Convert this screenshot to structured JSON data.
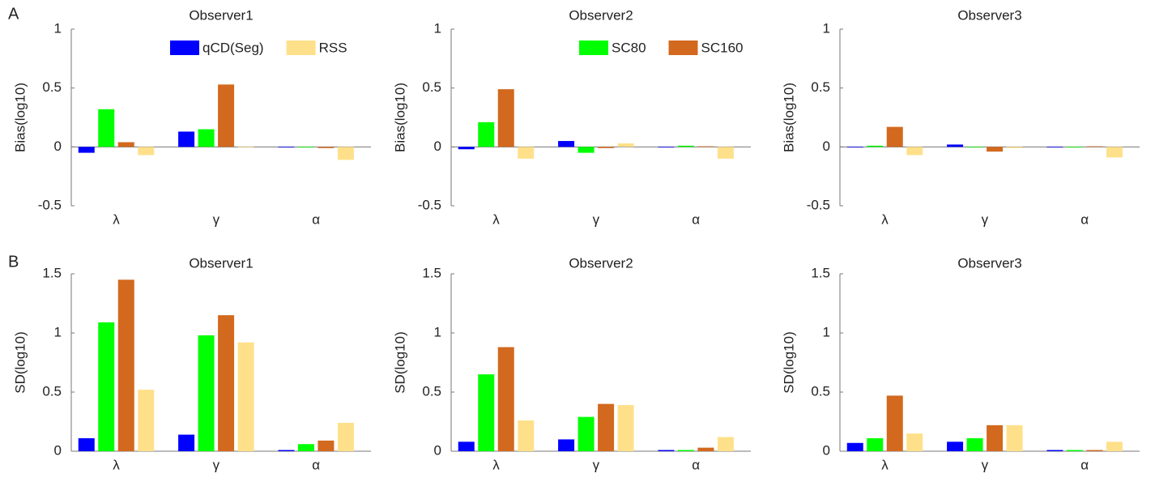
{
  "chart_data": [
    {
      "type": "bar",
      "panel": "A",
      "title": "Observer1",
      "ylabel": "Bias(log10)",
      "categories": [
        "λ",
        "γ",
        "α"
      ],
      "ylim": [
        -0.5,
        1
      ],
      "yticks": [
        -0.5,
        0,
        0.5,
        1
      ],
      "series": [
        {
          "name": "qCD(Seg)",
          "color": "#0000ff",
          "values": [
            -0.05,
            0.13,
            0
          ]
        },
        {
          "color": "#00ff00",
          "values": [
            0.32,
            0.15,
            0
          ]
        },
        {
          "color": "#d2691e",
          "values": [
            0.04,
            0.53,
            -0.01
          ]
        },
        {
          "name": "RSS",
          "color": "#ffe08a",
          "values": [
            -0.07,
            0,
            -0.11
          ]
        }
      ]
    },
    {
      "type": "bar",
      "title": "Observer2",
      "ylabel": "Bias(log10)",
      "categories": [
        "λ",
        "γ",
        "α"
      ],
      "ylim": [
        -0.5,
        1
      ],
      "yticks": [
        -0.5,
        0,
        0.5,
        1
      ],
      "series": [
        {
          "color": "#0000ff",
          "values": [
            -0.02,
            0.05,
            0
          ]
        },
        {
          "name": "SC80",
          "color": "#00ff00",
          "values": [
            0.21,
            -0.05,
            0.01
          ]
        },
        {
          "name": "SC160",
          "color": "#d2691e",
          "values": [
            0.49,
            -0.01,
            0.005
          ]
        },
        {
          "color": "#ffe08a",
          "values": [
            -0.1,
            0.03,
            -0.1
          ]
        }
      ]
    },
    {
      "type": "bar",
      "title": "Observer3",
      "ylabel": "Bias(log10)",
      "categories": [
        "λ",
        "γ",
        "α"
      ],
      "ylim": [
        -0.5,
        1
      ],
      "yticks": [
        -0.5,
        0,
        0.5,
        1
      ],
      "series": [
        {
          "color": "#0000ff",
          "values": [
            -0.005,
            0.02,
            0
          ]
        },
        {
          "color": "#00ff00",
          "values": [
            0.01,
            0,
            0
          ]
        },
        {
          "color": "#d2691e",
          "values": [
            0.17,
            -0.04,
            0.005
          ]
        },
        {
          "color": "#ffe08a",
          "values": [
            -0.07,
            -0.01,
            -0.09
          ]
        }
      ]
    },
    {
      "type": "bar",
      "panel": "B",
      "title": "Observer1",
      "ylabel": "SD(log10)",
      "categories": [
        "λ",
        "γ",
        "α"
      ],
      "ylim": [
        0,
        1.5
      ],
      "yticks": [
        0,
        0.5,
        1,
        1.5
      ],
      "series": [
        {
          "color": "#0000ff",
          "values": [
            0.11,
            0.14,
            0.01
          ]
        },
        {
          "color": "#00ff00",
          "values": [
            1.09,
            0.98,
            0.06
          ]
        },
        {
          "color": "#d2691e",
          "values": [
            1.45,
            1.15,
            0.09
          ]
        },
        {
          "color": "#ffe08a",
          "values": [
            0.52,
            0.92,
            0.24
          ]
        }
      ]
    },
    {
      "type": "bar",
      "title": "Observer2",
      "ylabel": "SD(log10)",
      "categories": [
        "λ",
        "γ",
        "α"
      ],
      "ylim": [
        0,
        1.5
      ],
      "yticks": [
        0,
        0.5,
        1,
        1.5
      ],
      "series": [
        {
          "color": "#0000ff",
          "values": [
            0.08,
            0.1,
            0.01
          ]
        },
        {
          "color": "#00ff00",
          "values": [
            0.65,
            0.29,
            0.01
          ]
        },
        {
          "color": "#d2691e",
          "values": [
            0.88,
            0.4,
            0.03
          ]
        },
        {
          "color": "#ffe08a",
          "values": [
            0.26,
            0.39,
            0.12
          ]
        }
      ]
    },
    {
      "type": "bar",
      "title": "Observer3",
      "ylabel": "SD(log10)",
      "categories": [
        "λ",
        "γ",
        "α"
      ],
      "ylim": [
        0,
        1.5
      ],
      "yticks": [
        0,
        0.5,
        1,
        1.5
      ],
      "series": [
        {
          "color": "#0000ff",
          "values": [
            0.07,
            0.08,
            0.01
          ]
        },
        {
          "color": "#00ff00",
          "values": [
            0.11,
            0.11,
            0.01
          ]
        },
        {
          "color": "#d2691e",
          "values": [
            0.47,
            0.22,
            0.01
          ]
        },
        {
          "color": "#ffe08a",
          "values": [
            0.15,
            0.22,
            0.08
          ]
        }
      ]
    }
  ]
}
